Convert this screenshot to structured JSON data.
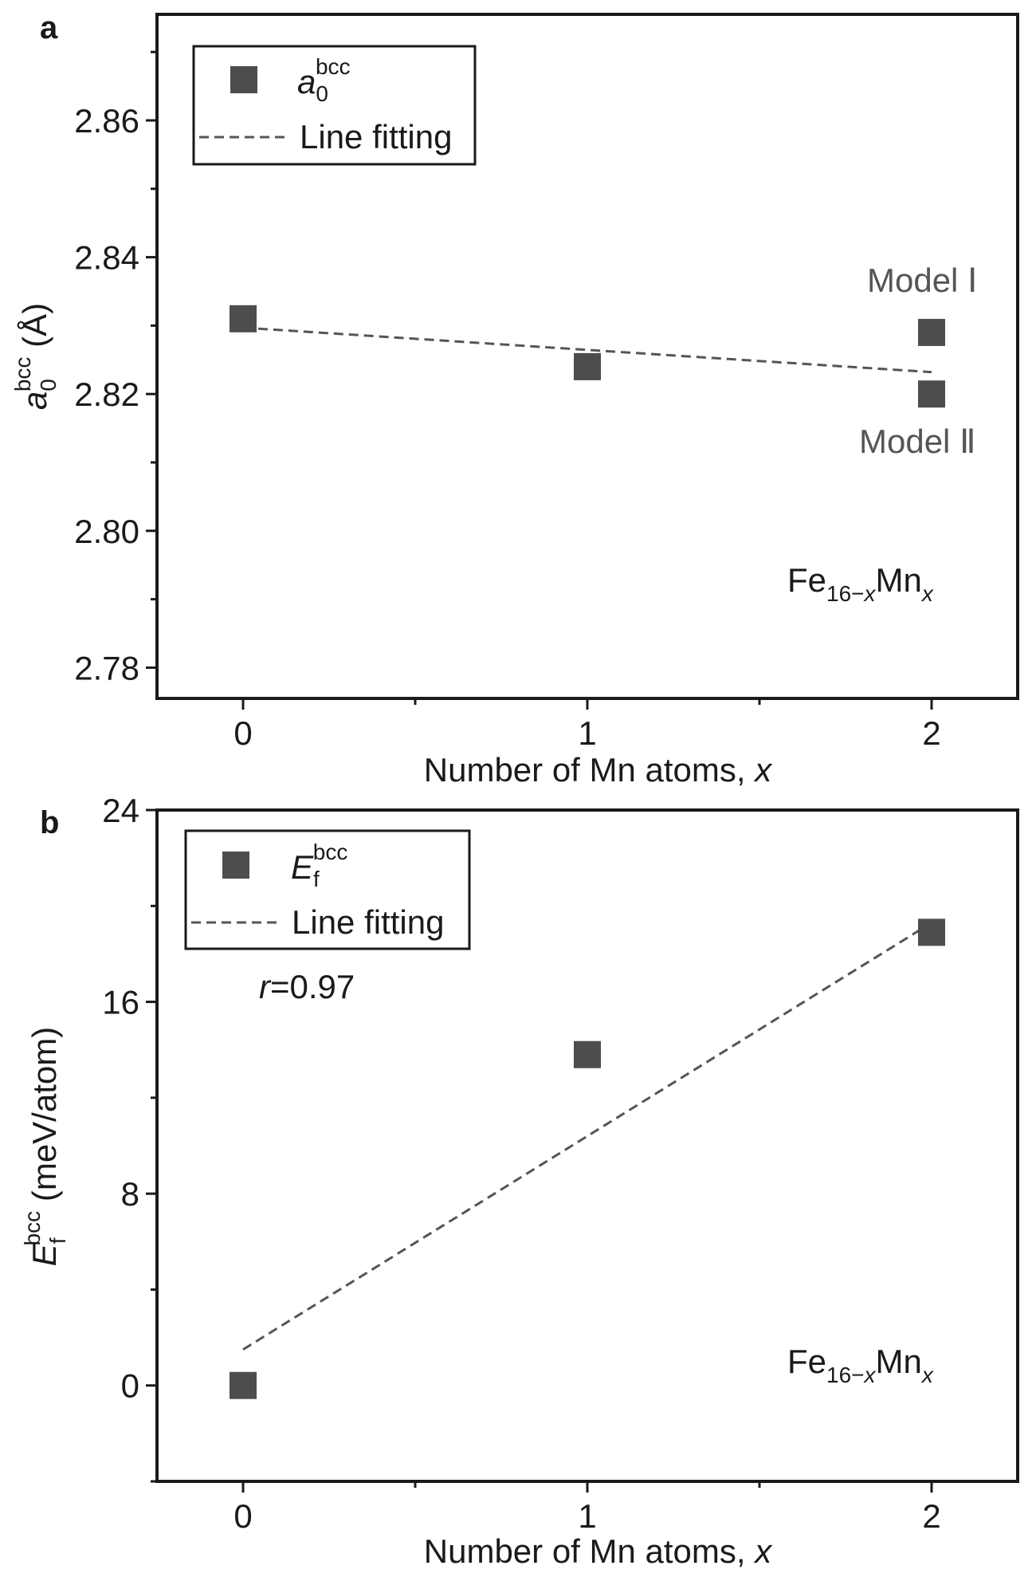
{
  "chart_data": [
    {
      "panel": "a",
      "type": "scatter",
      "xlabel": "Number of Mn atoms, ",
      "xlabel_var": "x",
      "ylabel_var": "a",
      "ylabel_sub": "0",
      "ylabel_sup": "bcc",
      "ylabel_unit": " (Å)",
      "xlim": [
        -0.25,
        2.25
      ],
      "ylim": [
        2.7755,
        2.8755
      ],
      "xticks": [
        0,
        1,
        2
      ],
      "xtick_labels": [
        "0",
        "1",
        "2"
      ],
      "yticks": [
        2.78,
        2.8,
        2.82,
        2.84,
        2.86
      ],
      "ytick_labels": [
        "2.78",
        "2.80",
        "2.82",
        "2.84",
        "2.86"
      ],
      "series": [
        {
          "name": "a0bcc",
          "points": [
            {
              "x": 0,
              "y": 2.831
            },
            {
              "x": 1,
              "y": 2.824
            },
            {
              "x": 2,
              "y": 2.829
            },
            {
              "x": 2,
              "y": 2.82
            }
          ]
        }
      ],
      "fit_line": {
        "name": "Line fitting",
        "x": [
          0,
          2
        ],
        "y": [
          2.8297,
          2.8232
        ]
      },
      "legend": {
        "symbol_var": "a",
        "symbol_sub": "0",
        "symbol_sup": "bcc",
        "line_label": "Line fitting",
        "placement": "top-left"
      },
      "annotations": {
        "model1": "Model Ⅰ",
        "model2": "Model Ⅱ",
        "formula_base": "Fe",
        "formula_sub1": "16−",
        "formula_sub1_var": "x",
        "formula_mid": "Mn",
        "formula_sub2_var": "x"
      }
    },
    {
      "panel": "b",
      "type": "scatter",
      "xlabel": "Number of Mn atoms, ",
      "xlabel_var": "x",
      "ylabel_var": "E",
      "ylabel_sub": "f",
      "ylabel_sup": "bcc",
      "ylabel_unit": " (meV/atom)",
      "xlim": [
        -0.25,
        2.25
      ],
      "ylim": [
        -4,
        24
      ],
      "xticks": [
        0,
        1,
        2
      ],
      "xtick_labels": [
        "0",
        "1",
        "2"
      ],
      "yticks": [
        0,
        8,
        16,
        24
      ],
      "ytick_labels": [
        "0",
        "8",
        "16",
        "24"
      ],
      "series": [
        {
          "name": "Efbcc",
          "points": [
            {
              "x": 0,
              "y": 0.0
            },
            {
              "x": 1,
              "y": 13.8
            },
            {
              "x": 2,
              "y": 18.9
            }
          ]
        }
      ],
      "fit_line": {
        "name": "Line fitting",
        "x": [
          0,
          2
        ],
        "y": [
          1.5,
          19.3
        ]
      },
      "legend": {
        "symbol_var": "E",
        "symbol_sub": "f",
        "symbol_sup": "bcc",
        "line_label": "Line fitting",
        "placement": "top-left"
      },
      "annotations": {
        "r_var": "r",
        "r_value": "=0.97",
        "formula_base": "Fe",
        "formula_sub1": "16−",
        "formula_sub1_var": "x",
        "formula_mid": "Mn",
        "formula_sub2_var": "x"
      }
    }
  ]
}
